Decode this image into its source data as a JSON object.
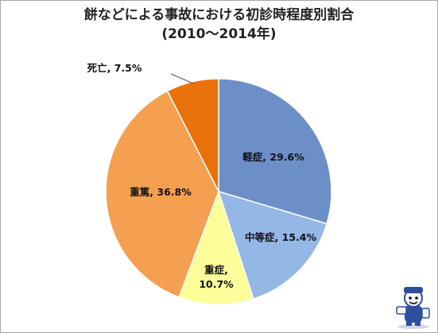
{
  "chart_data": {
    "type": "pie",
    "title": "餅などによる事故における初診時程度別割合",
    "subtitle": "(2010～2014年)",
    "slices": [
      {
        "label": "軽症",
        "value": 29.6,
        "display": "29.6%",
        "color": "#6d8fc8"
      },
      {
        "label": "中等症",
        "value": 15.4,
        "display": "15.4%",
        "color": "#94b7e6"
      },
      {
        "label": "重症",
        "value": 10.7,
        "display": "10.7%",
        "color": "#fdfd9a"
      },
      {
        "label": "重篤",
        "value": 36.8,
        "display": "36.8%",
        "color": "#f5a050"
      },
      {
        "label": "死亡",
        "value": 7.5,
        "display": "7.5%",
        "color": "#e8710c"
      }
    ],
    "start_angle_deg": 0,
    "direction": "clockwise",
    "legend": "none"
  },
  "mascot": {
    "icon": "mascot-character-icon"
  }
}
